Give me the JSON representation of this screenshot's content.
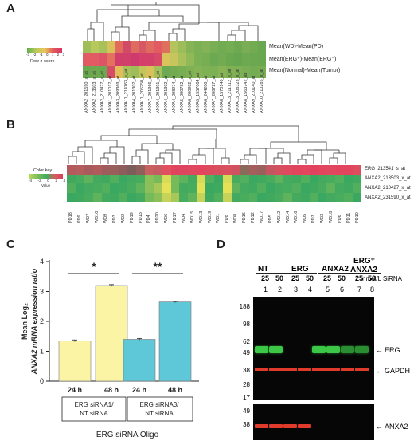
{
  "panel_a": {
    "letter": "A",
    "key_label": "Row z-score",
    "key_ticks": [
      "-3",
      "-2",
      "-1",
      "0",
      "1",
      "2",
      "3"
    ],
    "rows": [
      "Mean(WD)-Mean(PD)",
      "Mean(ERG⁺)-Mean(ERG⁻)",
      "Mean(Normal)-Mean(Tumor)"
    ],
    "columns": [
      "ANXA2_201590_x_at",
      "ANXA2_213503_x_at",
      "ANXA2_210427_x_at",
      "ANXA1_201012_at",
      "ANXA3_209369_at",
      "ANXA11_214763_s_at",
      "ANXA4_201302_at",
      "ANXA11_206250_at",
      "ANXA7_201366_at",
      "ANXA4_201301_s_at",
      "ANXA4_201302_at",
      "ANXA4_208974_at",
      "ANXA5_200782_at",
      "ANXA6_200982_s_at",
      "ANXA5_1557064_at",
      "ANXA6_244200_at",
      "ANXA7_208727_at",
      "ANXA8_1570140_at",
      "ANXA13_211712_s_at",
      "ANXA13_208323_s_at",
      "ANXA8_1563742_at",
      "ANXA9_210140_at",
      "ANXA10_210285_s_at"
    ]
  },
  "panel_b": {
    "letter": "B",
    "key_title": "Color key",
    "key_ticks": [
      "-4",
      "-2",
      "0",
      "2",
      "4"
    ],
    "key_value_label": "Value",
    "rows": [
      "ERG_213541_s_at",
      "ANXA2_213503_x_at",
      "ANXA2_210427_x_at",
      "ANXA2_231590_x_at"
    ],
    "columns": [
      "PD18",
      "PD9",
      "WD7",
      "WD10",
      "WD9",
      "PD3",
      "WD2",
      "PD19",
      "PD13",
      "PD4",
      "PD20",
      "WD6",
      "PD17",
      "WD4",
      "WD15",
      "WD13",
      "WD19",
      "WD1",
      "PD8",
      "WD8",
      "PD16",
      "PD12",
      "WD17",
      "PD5",
      "WD12",
      "WD14",
      "WD16",
      "WD5",
      "PD7",
      "WD3",
      "WD18",
      "PD6",
      "PD11",
      "PD10"
    ]
  },
  "panel_c": {
    "letter": "C",
    "y_label": "Mean Log₂ ANXA2 mRNA expression ratio",
    "x_label": "ERG siRNA Oligo",
    "group_labels": [
      "ERG siRNA1/ NT siRNA",
      "ERG siRNA3/ NT siRNA"
    ],
    "significance": [
      "*",
      "**"
    ],
    "colors": {
      "siRNA1": "#fbf4a4",
      "siRNA3": "#5fc8d8"
    }
  },
  "chart_data": {
    "type": "bar",
    "title": "",
    "xlabel": "ERG siRNA Oligo",
    "ylabel": "Mean Log2 ANXA2 mRNA expression ratio",
    "ylim": [
      0,
      4
    ],
    "yticks": [
      0,
      1,
      2,
      3,
      4
    ],
    "categories": [
      "24 h",
      "48 h",
      "24 h",
      "48 h"
    ],
    "groups": [
      "ERG siRNA1/ NT siRNA",
      "ERG siRNA1/ NT siRNA",
      "ERG siRNA3/ NT siRNA",
      "ERG siRNA3/ NT siRNA"
    ],
    "values": [
      1.35,
      3.2,
      1.4,
      2.65
    ],
    "errors": [
      0.03,
      0.03,
      0.03,
      0.02
    ],
    "colors": [
      "#fbf4a4",
      "#fbf4a4",
      "#5fc8d8",
      "#5fc8d8"
    ]
  },
  "panel_d": {
    "letter": "D",
    "lane_groups": [
      "NT",
      "ERG",
      "ANXA2",
      "ERG⁺",
      "ANXA2"
    ],
    "concentrations": [
      "25",
      "50",
      "25",
      "50",
      "25",
      "50",
      "25",
      "50"
    ],
    "conc_unit": "nmol/L SiRNA",
    "lane_numbers": [
      "1",
      "2",
      "3",
      "4",
      "5",
      "6",
      "7",
      "8"
    ],
    "mw_markers_top": [
      "188",
      "98",
      "62",
      "49",
      "38",
      "28",
      "17"
    ],
    "mw_markers_bottom": [
      "49",
      "38"
    ],
    "band_labels": [
      "ERG",
      "GAPDH",
      "ANXA2"
    ]
  }
}
